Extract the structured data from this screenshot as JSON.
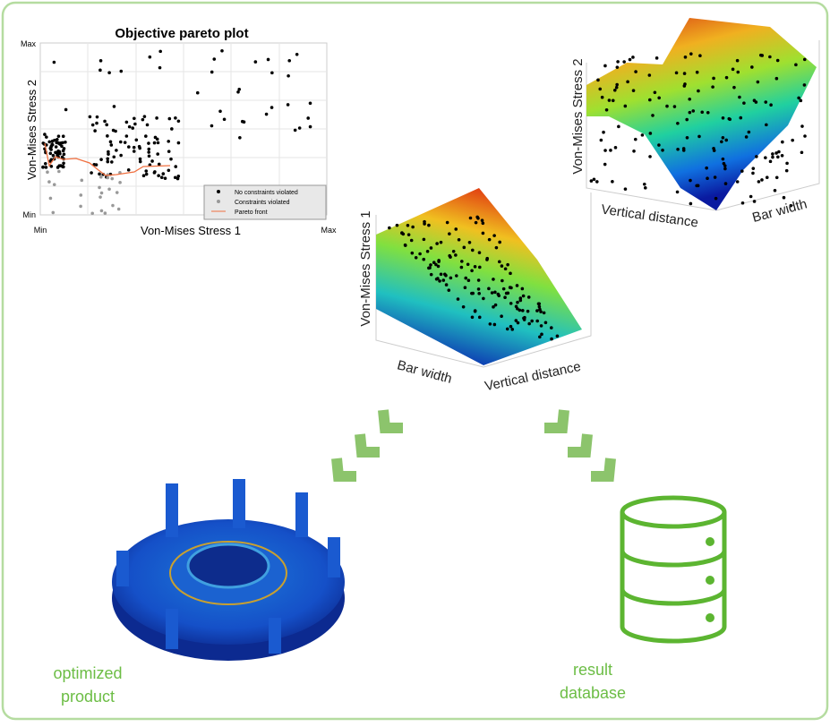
{
  "pareto_plot": {
    "title": "Objective pareto plot",
    "x_label": "Von-Mises Stress 1",
    "y_label": "Von-Mises Stress 2",
    "x_ticks": [
      "Min",
      "Max"
    ],
    "y_ticks": [
      "Max",
      "Min"
    ],
    "legend": [
      "No constraints violated",
      "Constraints violated",
      "Pareto front"
    ]
  },
  "surface_plots": [
    {
      "z_label": "Von-Mises Stress 2",
      "axis_labels": [
        "Vertical distance",
        "Bar width"
      ]
    },
    {
      "z_label": "Von-Mises Stress 1",
      "axis_labels": [
        "Bar width",
        "Vertical distance"
      ]
    }
  ],
  "outputs": [
    {
      "lines": [
        "optimized",
        "product"
      ]
    },
    {
      "lines": [
        "result",
        "database"
      ]
    }
  ]
}
